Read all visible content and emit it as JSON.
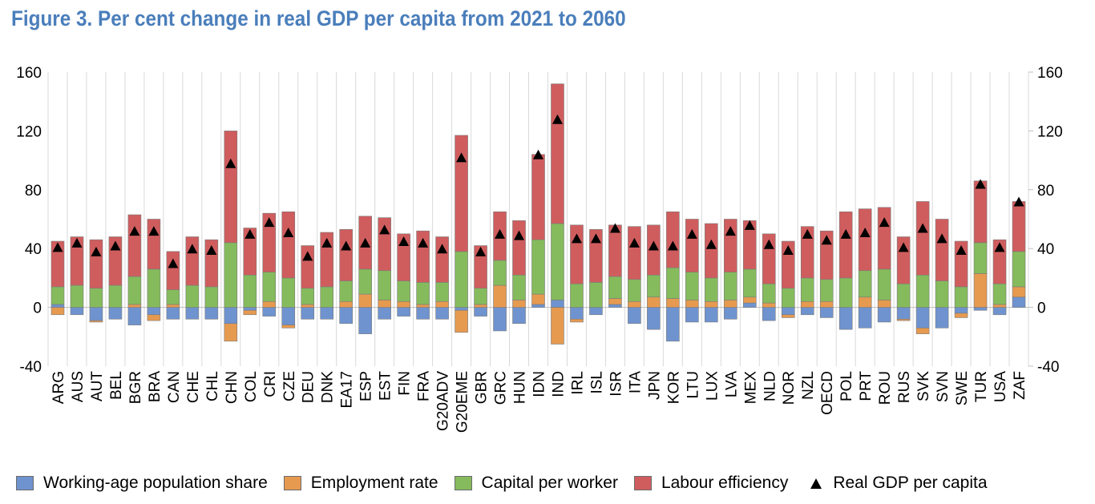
{
  "chart_data": {
    "type": "bar",
    "stacked": true,
    "title": "Figure 3. Per cent change in real GDP per capita from 2021 to 2060",
    "xlabel": "",
    "ylabel": "",
    "ylim": [
      -40,
      160
    ],
    "yticks": [
      160,
      120,
      80,
      40,
      0,
      -40
    ],
    "ytick_labels": [
      "160",
      "120",
      "80",
      "40",
      "0",
      "-40"
    ],
    "secondary_axis": true,
    "grid": "vertical",
    "legend_position": "bottom",
    "categories": [
      "ARG",
      "AUS",
      "AUT",
      "BEL",
      "BGR",
      "BRA",
      "CAN",
      "CHE",
      "CHL",
      "CHN",
      "COL",
      "CRI",
      "CZE",
      "DEU",
      "DNK",
      "EA17",
      "ESP",
      "EST",
      "FIN",
      "FRA",
      "G20ADV",
      "G20EME",
      "GBR",
      "GRC",
      "HUN",
      "IDN",
      "IND",
      "IRL",
      "ISL",
      "ISR",
      "ITA",
      "JPN",
      "KOR",
      "LTU",
      "LUX",
      "LVA",
      "MEX",
      "NLD",
      "NOR",
      "NZL",
      "OECD",
      "POL",
      "PRT",
      "ROU",
      "RUS",
      "SVK",
      "SVN",
      "SWE",
      "TUR",
      "USA",
      "ZAF"
    ],
    "series": [
      {
        "name": "Working-age population share",
        "color": "#6F93CF",
        "values": [
          2,
          -5,
          -9,
          -8,
          -12,
          -5,
          -8,
          -8,
          -8,
          -11,
          -2,
          -6,
          -12,
          -8,
          -8,
          -11,
          -18,
          -8,
          -6,
          -8,
          -8,
          -2,
          -6,
          -16,
          -11,
          2,
          5,
          -8,
          -5,
          2,
          -11,
          -15,
          -23,
          -10,
          -10,
          -8,
          3,
          -9,
          -5,
          -5,
          -7,
          -15,
          -14,
          -10,
          -8,
          -14,
          -14,
          -4,
          -2,
          -5,
          7
        ]
      },
      {
        "name": "Employment rate",
        "color": "#E69A50",
        "values": [
          -5,
          0,
          -1,
          0,
          2,
          -4,
          2,
          0,
          0,
          -12,
          -3,
          4,
          -2,
          2,
          0,
          4,
          9,
          5,
          4,
          2,
          4,
          -15,
          2,
          15,
          5,
          7,
          -25,
          -2,
          0,
          4,
          4,
          7,
          6,
          5,
          4,
          5,
          4,
          3,
          -2,
          4,
          4,
          0,
          7,
          5,
          -1,
          -4,
          0,
          -3,
          23,
          2,
          7
        ]
      },
      {
        "name": "Capital per worker",
        "color": "#85BB5C",
        "values": [
          12,
          15,
          13,
          15,
          19,
          26,
          10,
          15,
          14,
          44,
          22,
          20,
          20,
          11,
          14,
          14,
          17,
          20,
          14,
          15,
          13,
          38,
          11,
          17,
          17,
          37,
          52,
          16,
          17,
          15,
          15,
          15,
          21,
          19,
          16,
          19,
          19,
          13,
          13,
          16,
          15,
          20,
          18,
          21,
          16,
          22,
          18,
          14,
          21,
          14,
          24
        ]
      },
      {
        "name": "Labour efficiency",
        "color": "#D05D5E",
        "values": [
          31,
          33,
          33,
          33,
          42,
          34,
          26,
          33,
          32,
          76,
          32,
          40,
          45,
          29,
          37,
          35,
          36,
          36,
          32,
          35,
          31,
          79,
          29,
          33,
          37,
          58,
          95,
          40,
          36,
          35,
          36,
          34,
          38,
          36,
          37,
          36,
          33,
          34,
          32,
          35,
          33,
          45,
          42,
          42,
          32,
          50,
          42,
          31,
          42,
          30,
          34
        ]
      },
      {
        "name": "Real GDP per capita",
        "type": "marker",
        "marker": "triangle",
        "color": "#000000",
        "values": [
          41,
          44,
          38,
          42,
          52,
          52,
          30,
          40,
          39,
          98,
          50,
          58,
          51,
          35,
          44,
          42,
          44,
          53,
          45,
          44,
          40,
          102,
          38,
          50,
          49,
          104,
          128,
          47,
          47,
          54,
          44,
          42,
          42,
          50,
          43,
          52,
          56,
          43,
          39,
          50,
          46,
          50,
          51,
          58,
          41,
          54,
          47,
          39,
          84,
          41,
          72
        ]
      }
    ]
  }
}
